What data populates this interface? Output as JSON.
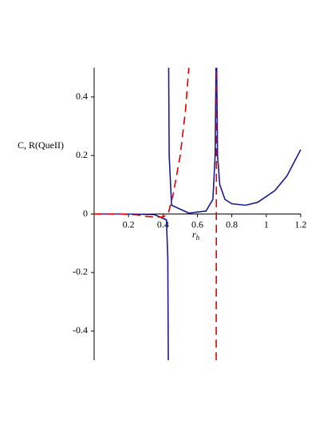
{
  "chart_data": {
    "type": "line",
    "ylabel": "C, R(QueII)",
    "xlabel": "r",
    "xlabel_sub": "h",
    "xlim": [
      0,
      1.2
    ],
    "ylim": [
      -0.5,
      0.5
    ],
    "xticks": [
      0.2,
      0.4,
      0.6,
      0.8,
      1,
      1.2
    ],
    "yticks": [
      -0.4,
      -0.2,
      0,
      0.2,
      0.4
    ],
    "series": [
      {
        "color": "#1c1c8a",
        "dash": false,
        "x": [
          0,
          0.2,
          0.35,
          0.42,
          0.428,
          0.431,
          0.432,
          0.433,
          0.436,
          0.45,
          0.55,
          0.65,
          0.69,
          0.703,
          0.708,
          0.71,
          0.712,
          0.717,
          0.73,
          0.76,
          0.8,
          0.88,
          0.95,
          1.05,
          1.12,
          1.2
        ],
        "values": [
          0,
          0,
          -0.002,
          -0.02,
          -0.15,
          -0.5,
          null,
          0.5,
          0.2,
          0.03,
          0.003,
          0.01,
          0.05,
          0.2,
          0.5,
          null,
          0.5,
          0.2,
          0.1,
          0.05,
          0.035,
          0.03,
          0.04,
          0.08,
          0.13,
          0.22
        ]
      },
      {
        "color": "#e00000",
        "dash": true,
        "x": [
          0,
          0.15,
          0.25,
          0.3,
          0.35,
          0.4,
          0.43,
          0.46,
          0.5,
          0.53,
          0.55,
          0.6,
          0.709,
          0.711
        ],
        "values": [
          0,
          0,
          -0.003,
          -0.008,
          -0.01,
          -0.01,
          0,
          0.07,
          0.2,
          0.35,
          0.5,
          null,
          -0.5,
          0.5
        ]
      }
    ]
  }
}
